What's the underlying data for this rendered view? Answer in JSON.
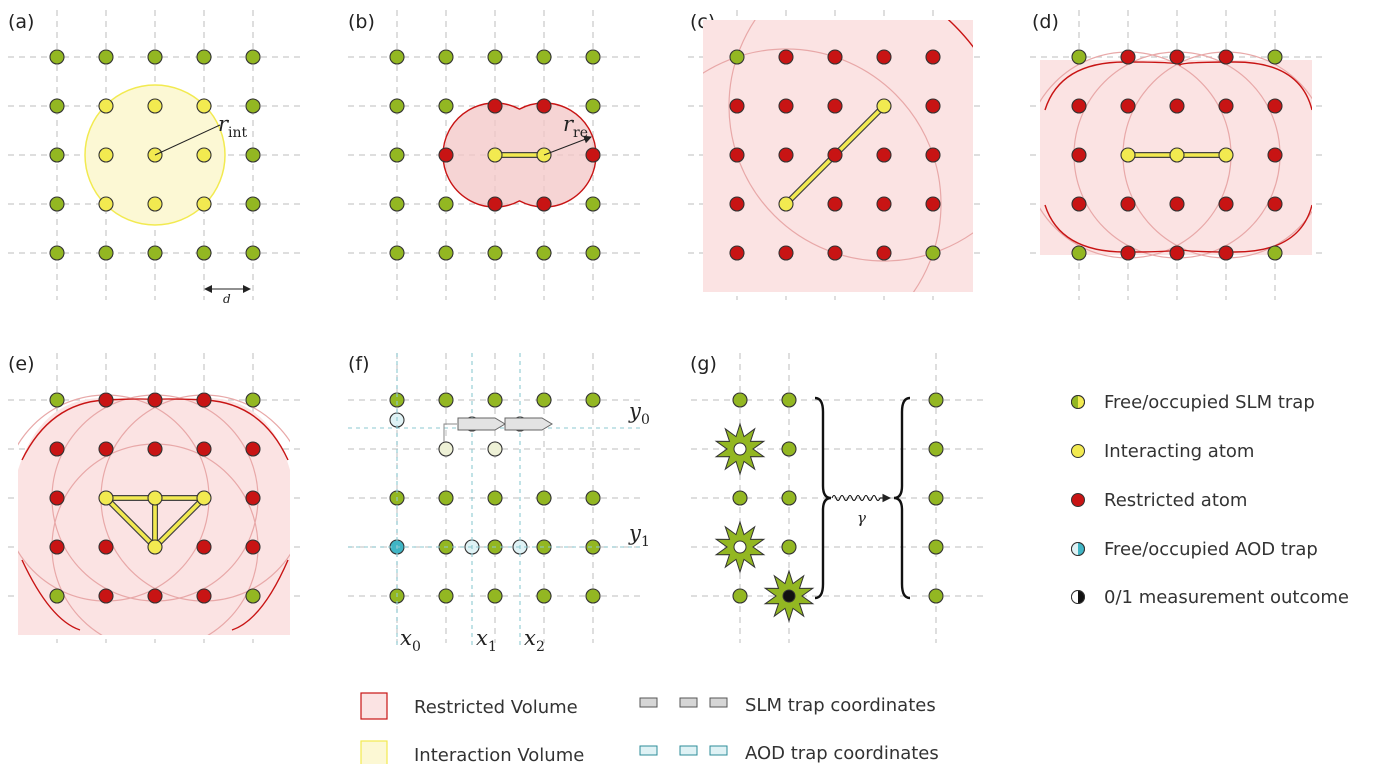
{
  "panels": [
    {
      "id": "a",
      "label": "(a)"
    },
    {
      "id": "b",
      "label": "(b)"
    },
    {
      "id": "c",
      "label": "(c)"
    },
    {
      "id": "d",
      "label": "(d)"
    },
    {
      "id": "e",
      "label": "(e)"
    },
    {
      "id": "f",
      "label": "(f)"
    },
    {
      "id": "g",
      "label": "(g)"
    }
  ],
  "annotations": {
    "r_int": {
      "main": "r",
      "sub": "int"
    },
    "r_re": {
      "main": "r",
      "sub": "re"
    },
    "d": "d",
    "gamma": "γ",
    "x0": {
      "main": "x",
      "sub": "0"
    },
    "x1": {
      "main": "x",
      "sub": "1"
    },
    "x2": {
      "main": "x",
      "sub": "2"
    },
    "y0": {
      "main": "y",
      "sub": "0"
    },
    "y1": {
      "main": "y",
      "sub": "1"
    }
  },
  "legend_right": [
    {
      "key": "slm",
      "text": "Free/occupied SLM trap",
      "colors": [
        "#93b722",
        "#f2ea50"
      ]
    },
    {
      "key": "interacting",
      "text": "Interacting atom",
      "color": "#f2ea50"
    },
    {
      "key": "restricted",
      "text": "Restricted atom",
      "color": "#c81414"
    },
    {
      "key": "aod",
      "text": "Free/occupied AOD trap",
      "colors": [
        "#dff2f5",
        "#40b5c5"
      ]
    },
    {
      "key": "measure",
      "text": "0/1 measurement outcome",
      "colors": [
        "#ffffff",
        "#111111"
      ]
    }
  ],
  "legend_bottom": [
    {
      "key": "restricted_volume",
      "text": "Restricted Volume",
      "fill": "#fbe3e3",
      "stroke": "#c81414"
    },
    {
      "key": "interaction_volume",
      "text": "Interaction Volume",
      "fill": "#fcf8d4",
      "stroke": "#f2ea50"
    },
    {
      "key": "slm_coords",
      "text": "SLM trap coordinates",
      "fill": "#d6d6d6",
      "stroke": "#555555"
    },
    {
      "key": "aod_coords",
      "text": "AOD trap coordinates",
      "fill": "#dff2f5",
      "stroke": "#2e8c99"
    }
  ],
  "colors": {
    "green": "#93b722",
    "yellow": "#f2ea50",
    "red": "#c81414",
    "cyan": "#40b5c5",
    "lightcyan": "#dff2f5",
    "pinkfill": "#fbe3e3",
    "yellowfill": "#fcf8d4",
    "grid": "#c9c9c9"
  }
}
